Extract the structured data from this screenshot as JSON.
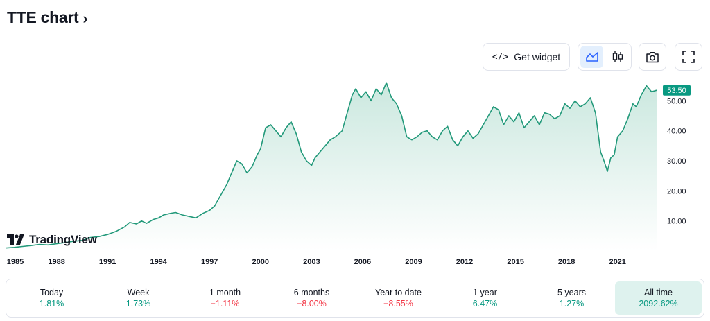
{
  "header": {
    "title": "TTE chart",
    "chevron": "›"
  },
  "toolbar": {
    "widget_label": "Get widget",
    "widget_glyph": "</>"
  },
  "colors": {
    "line": "#22997a",
    "fill_top": "#cbe8df",
    "price_badge": "#089981",
    "positive": "#089981",
    "negative": "#f23645",
    "active_cell": "#def2ee"
  },
  "branding": {
    "logo_text": "TradingView"
  },
  "chart_data": {
    "type": "area",
    "title": "TTE chart",
    "xlabel": "",
    "ylabel": "",
    "xlim": [
      1985.0,
      2023.5
    ],
    "ylim": [
      0,
      57
    ],
    "yticks": [
      "10.00",
      "20.00",
      "30.00",
      "40.00",
      "50.00"
    ],
    "xticks": [
      "1985",
      "1988",
      "1991",
      "1994",
      "1997",
      "2000",
      "2003",
      "2006",
      "2009",
      "2012",
      "2015",
      "2018",
      "2021"
    ],
    "last_price_label": "53.50",
    "x": [
      1985.0,
      1985.5,
      1986.0,
      1986.5,
      1987.0,
      1987.5,
      1988.0,
      1988.5,
      1989.0,
      1989.5,
      1990.0,
      1990.5,
      1991.0,
      1991.5,
      1992.0,
      1992.3,
      1992.7,
      1993.0,
      1993.3,
      1993.7,
      1994.0,
      1994.3,
      1994.7,
      1995.0,
      1995.4,
      1995.8,
      1996.2,
      1996.6,
      1997.0,
      1997.3,
      1997.6,
      1998.0,
      1998.3,
      1998.6,
      1998.9,
      1999.2,
      1999.5,
      1999.8,
      2000.0,
      2000.3,
      2000.6,
      2000.9,
      2001.2,
      2001.5,
      2001.8,
      2002.1,
      2002.4,
      2002.7,
      2003.0,
      2003.2,
      2003.5,
      2003.8,
      2004.1,
      2004.4,
      2004.8,
      2005.1,
      2005.4,
      2005.6,
      2005.9,
      2006.2,
      2006.5,
      2006.8,
      2007.1,
      2007.4,
      2007.7,
      2008.0,
      2008.3,
      2008.6,
      2008.9,
      2009.2,
      2009.5,
      2009.8,
      2010.1,
      2010.4,
      2010.7,
      2011.0,
      2011.3,
      2011.6,
      2011.9,
      2012.2,
      2012.5,
      2012.8,
      2013.1,
      2013.4,
      2013.7,
      2014.0,
      2014.3,
      2014.6,
      2014.9,
      2015.2,
      2015.5,
      2015.8,
      2016.1,
      2016.4,
      2016.7,
      2017.0,
      2017.3,
      2017.6,
      2017.9,
      2018.2,
      2018.5,
      2018.8,
      2019.1,
      2019.4,
      2019.7,
      2020.0,
      2020.2,
      2020.4,
      2020.6,
      2020.8,
      2021.0,
      2021.3,
      2021.6,
      2021.9,
      2022.1,
      2022.4,
      2022.7,
      2023.0,
      2023.3
    ],
    "values": [
      1.0,
      1.2,
      1.5,
      1.8,
      2.2,
      2.0,
      2.4,
      2.8,
      3.2,
      3.5,
      4.5,
      4.8,
      5.5,
      6.5,
      8.0,
      9.5,
      9.0,
      10.0,
      9.2,
      10.5,
      11.0,
      12.0,
      12.5,
      12.8,
      12.0,
      11.5,
      11.0,
      12.5,
      13.5,
      15.0,
      18.0,
      22.0,
      26.0,
      30.0,
      29.0,
      26.0,
      28.0,
      32.0,
      34.0,
      41.0,
      42.0,
      40.0,
      38.0,
      41.0,
      43.0,
      39.0,
      33.0,
      30.0,
      28.5,
      31.0,
      33.0,
      35.0,
      37.0,
      38.0,
      40.0,
      46.0,
      52.0,
      54.0,
      51.0,
      53.0,
      50.0,
      54.0,
      52.0,
      56.0,
      51.0,
      49.0,
      45.0,
      38.0,
      37.0,
      38.0,
      39.5,
      40.0,
      38.0,
      37.0,
      40.0,
      41.5,
      37.0,
      35.0,
      38.0,
      40.0,
      37.5,
      39.0,
      42.0,
      45.0,
      48.0,
      47.0,
      42.0,
      45.0,
      43.0,
      46.0,
      41.0,
      43.0,
      45.0,
      42.0,
      46.0,
      45.5,
      44.0,
      45.0,
      49.0,
      47.5,
      50.0,
      48.0,
      49.0,
      51.0,
      46.0,
      33.0,
      30.0,
      26.5,
      31.0,
      32.0,
      38.0,
      40.0,
      44.0,
      49.0,
      48.0,
      52.0,
      55.0,
      53.0,
      53.5
    ]
  },
  "performance": [
    {
      "label": "Today",
      "value": "1.81%",
      "trend": "pos"
    },
    {
      "label": "Week",
      "value": "1.73%",
      "trend": "pos"
    },
    {
      "label": "1 month",
      "value": "−1.11%",
      "trend": "neg"
    },
    {
      "label": "6 months",
      "value": "−8.00%",
      "trend": "neg"
    },
    {
      "label": "Year to date",
      "value": "−8.55%",
      "trend": "neg"
    },
    {
      "label": "1 year",
      "value": "6.47%",
      "trend": "pos"
    },
    {
      "label": "5 years",
      "value": "1.27%",
      "trend": "pos"
    },
    {
      "label": "All time",
      "value": "2092.62%",
      "trend": "pos",
      "active": true
    }
  ]
}
